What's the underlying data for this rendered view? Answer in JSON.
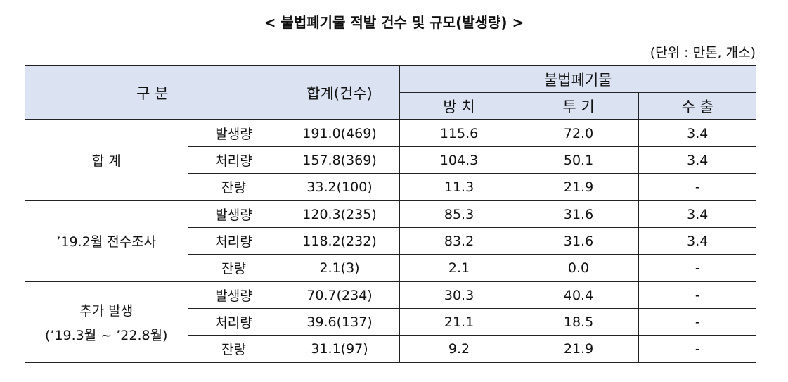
{
  "header": {
    "title": "< 불법폐기물 적발 건수 및 규모(발생량) >",
    "unit": "(단위 : 만톤, 개소)"
  },
  "table": {
    "head": {
      "category": "구 분",
      "total": "합계(건수)",
      "group": "불법폐기물",
      "columns": [
        "방 치",
        "투 기",
        "수 출"
      ]
    },
    "groups": [
      {
        "label": [
          "합 계"
        ],
        "rows": [
          [
            "발생량",
            "191.0(469)",
            "115.6",
            "72.0",
            "3.4"
          ],
          [
            "처리량",
            "157.8(369)",
            "104.3",
            "50.1",
            "3.4"
          ],
          [
            "잔량",
            "33.2(100)",
            "11.3",
            "21.9",
            "-"
          ]
        ]
      },
      {
        "label": [
          "’19.2월 전수조사"
        ],
        "rows": [
          [
            "발생량",
            "120.3(235)",
            "85.3",
            "31.6",
            "3.4"
          ],
          [
            "처리량",
            "118.2(232)",
            "83.2",
            "31.6",
            "3.4"
          ],
          [
            "잔량",
            "2.1(3)",
            "2.1",
            "0.0",
            "-"
          ]
        ]
      },
      {
        "label": [
          "추가 발생",
          "(’19.3월 ~ ’22.8월)"
        ],
        "rows": [
          [
            "발생량",
            "70.7(234)",
            "30.3",
            "40.4",
            "-"
          ],
          [
            "처리량",
            "39.6(137)",
            "21.1",
            "18.5",
            "-"
          ],
          [
            "잔량",
            "31.1(97)",
            "9.2",
            "21.9",
            "-"
          ]
        ]
      }
    ]
  }
}
